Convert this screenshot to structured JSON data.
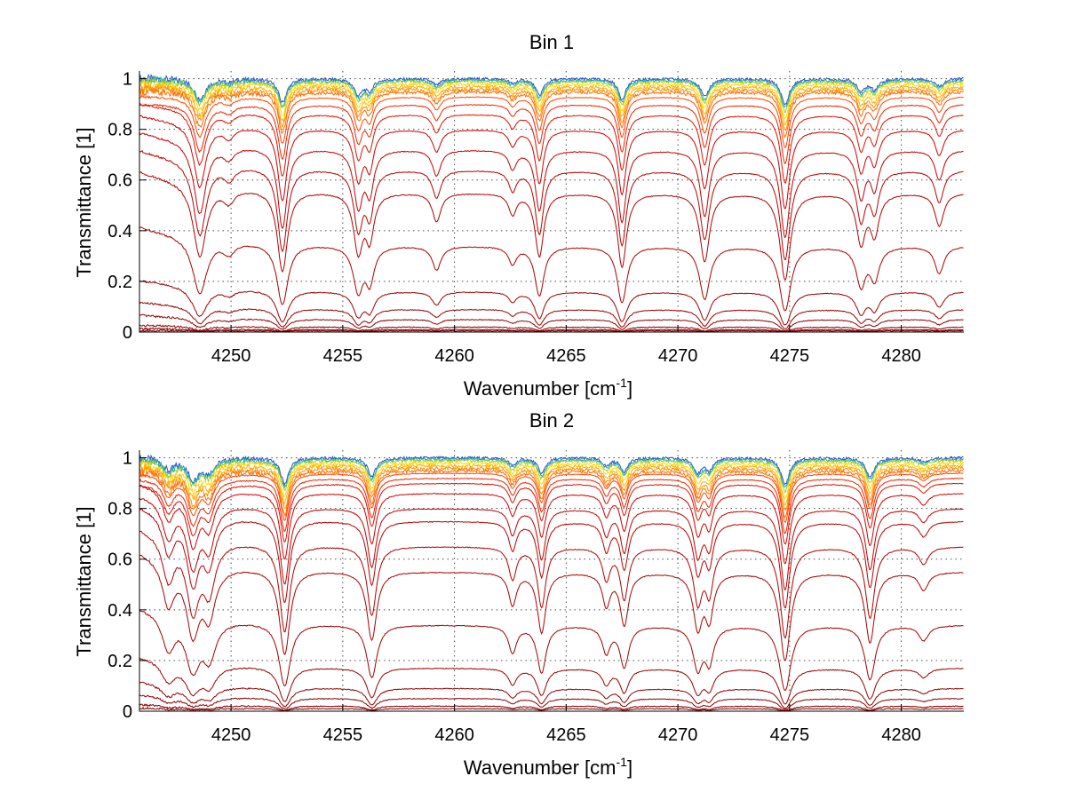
{
  "chart_data": [
    {
      "type": "line",
      "title": "Bin 1",
      "xlabel": "Wavenumber [cm",
      "xlabel_sup": "-1",
      "xlabel_end": "]",
      "ylabel": "Transmittance [1]",
      "xlim": [
        4245.9,
        4282.8
      ],
      "ylim": [
        0,
        1.03
      ],
      "xticks": [
        4250,
        4255,
        4260,
        4265,
        4270,
        4275,
        4280
      ],
      "yticks": [
        0,
        0.2,
        0.4,
        0.6,
        0.8,
        1
      ],
      "grid": true,
      "absorption_lines": [
        {
          "x": 4248.6,
          "strength": 0.55,
          "width": 0.3
        },
        {
          "x": 4249.9,
          "strength": 0.08,
          "width": 0.3
        },
        {
          "x": 4252.3,
          "strength": 0.65,
          "width": 0.22
        },
        {
          "x": 4255.7,
          "strength": 0.42,
          "width": 0.22
        },
        {
          "x": 4256.2,
          "strength": 0.3,
          "width": 0.2
        },
        {
          "x": 4259.2,
          "strength": 0.17,
          "width": 0.22
        },
        {
          "x": 4262.6,
          "strength": 0.12,
          "width": 0.2
        },
        {
          "x": 4263.8,
          "strength": 0.45,
          "width": 0.2
        },
        {
          "x": 4267.5,
          "strength": 0.56,
          "width": 0.2
        },
        {
          "x": 4271.2,
          "strength": 0.5,
          "width": 0.22
        },
        {
          "x": 4274.8,
          "strength": 0.72,
          "width": 0.22
        },
        {
          "x": 4278.2,
          "strength": 0.33,
          "width": 0.22
        },
        {
          "x": 4278.8,
          "strength": 0.26,
          "width": 0.22
        },
        {
          "x": 4281.7,
          "strength": 0.2,
          "width": 0.22
        }
      ],
      "series_levels": [
        1.0,
        0.995,
        0.99,
        0.98,
        0.97,
        0.96,
        0.95,
        0.93,
        0.9,
        0.86,
        0.8,
        0.72,
        0.64,
        0.55,
        0.34,
        0.16,
        0.09,
        0.05,
        0.02,
        0.01,
        0.005
      ],
      "series_colors": [
        "#2a4fcf",
        "#19a7b8",
        "#9acd32",
        "#ffd800",
        "#ffb000",
        "#ff8c00",
        "#ff6a00",
        "#ff4500",
        "#ee2200",
        "#dd1100",
        "#cc0000",
        "#c00000",
        "#b80000",
        "#b00000",
        "#a80000",
        "#a00000",
        "#980000",
        "#900000",
        "#880000",
        "#800000",
        "#800000"
      ]
    },
    {
      "type": "line",
      "title": "Bin 2",
      "xlabel": "Wavenumber [cm",
      "xlabel_sup": "-1",
      "xlabel_end": "]",
      "ylabel": "Transmittance [1]",
      "xlim": [
        4245.9,
        4282.8
      ],
      "ylim": [
        0,
        1.03
      ],
      "xticks": [
        4250,
        4255,
        4260,
        4265,
        4270,
        4275,
        4280
      ],
      "yticks": [
        0,
        0.2,
        0.4,
        0.6,
        0.8,
        1
      ],
      "grid": true,
      "absorption_lines": [
        {
          "x": 4247.2,
          "strength": 0.3,
          "width": 0.3
        },
        {
          "x": 4248.3,
          "strength": 0.55,
          "width": 0.3
        },
        {
          "x": 4249.0,
          "strength": 0.35,
          "width": 0.3
        },
        {
          "x": 4252.4,
          "strength": 0.7,
          "width": 0.22
        },
        {
          "x": 4256.3,
          "strength": 0.5,
          "width": 0.22
        },
        {
          "x": 4262.6,
          "strength": 0.2,
          "width": 0.2
        },
        {
          "x": 4263.9,
          "strength": 0.42,
          "width": 0.2
        },
        {
          "x": 4266.8,
          "strength": 0.2,
          "width": 0.2
        },
        {
          "x": 4267.6,
          "strength": 0.35,
          "width": 0.2
        },
        {
          "x": 4270.9,
          "strength": 0.38,
          "width": 0.22
        },
        {
          "x": 4271.4,
          "strength": 0.3,
          "width": 0.2
        },
        {
          "x": 4274.8,
          "strength": 0.74,
          "width": 0.22
        },
        {
          "x": 4278.6,
          "strength": 0.52,
          "width": 0.22
        },
        {
          "x": 4281.0,
          "strength": 0.1,
          "width": 0.25
        }
      ],
      "series_levels": [
        1.0,
        0.995,
        0.99,
        0.98,
        0.97,
        0.96,
        0.95,
        0.94,
        0.92,
        0.9,
        0.86,
        0.8,
        0.75,
        0.65,
        0.55,
        0.34,
        0.17,
        0.09,
        0.05,
        0.02,
        0.01
      ],
      "series_colors": [
        "#2a4fcf",
        "#19a7b8",
        "#9acd32",
        "#ffd800",
        "#ffb000",
        "#ff8c00",
        "#ff6a00",
        "#ff4500",
        "#ee2200",
        "#dd1100",
        "#cc0000",
        "#c00000",
        "#b80000",
        "#b00000",
        "#a80000",
        "#a00000",
        "#980000",
        "#900000",
        "#880000",
        "#800000",
        "#800000"
      ]
    }
  ]
}
